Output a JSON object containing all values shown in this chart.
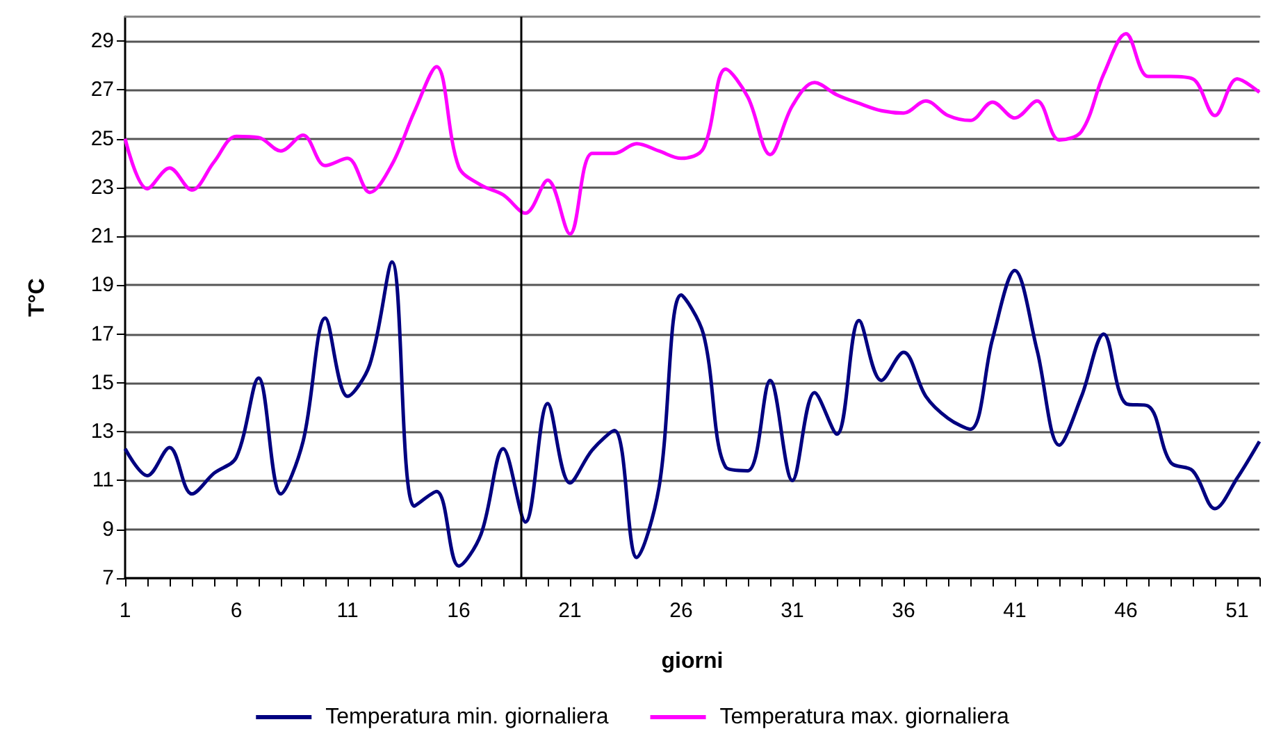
{
  "chart_data": {
    "type": "line",
    "xlabel": "giorni",
    "ylabel": "T°C",
    "x": [
      1,
      2,
      3,
      4,
      5,
      6,
      7,
      8,
      9,
      10,
      11,
      12,
      13,
      14,
      15,
      16,
      17,
      18,
      19,
      20,
      21,
      22,
      23,
      24,
      25,
      26,
      27,
      28,
      29,
      30,
      31,
      32,
      33,
      34,
      35,
      36,
      37,
      38,
      39,
      40,
      41,
      42,
      43,
      44,
      45,
      46,
      47,
      48,
      49,
      50,
      51,
      52
    ],
    "series": [
      {
        "name": "Temperatura min. giornaliera",
        "color": "#000080",
        "values": [
          12.3,
          11.2,
          12.35,
          10.45,
          11.3,
          11.95,
          15.2,
          10.45,
          12.6,
          17.65,
          14.45,
          15.75,
          19.95,
          9.95,
          10.55,
          7.5,
          8.8,
          12.3,
          9.3,
          14.15,
          10.9,
          12.25,
          13.05,
          7.85,
          10.7,
          18.6,
          17.0,
          11.55,
          11.4,
          15.1,
          11.0,
          14.6,
          12.9,
          17.55,
          15.1,
          16.25,
          14.45,
          13.55,
          13.1,
          16.8,
          19.6,
          16.35,
          12.45,
          14.45,
          17.0,
          14.15,
          14.05,
          11.75,
          11.4,
          9.85,
          11.1,
          12.6
        ]
      },
      {
        "name": "Temperatura max. giornaliera",
        "color": "#ff00ff",
        "values": [
          25.0,
          22.95,
          23.8,
          22.9,
          24.05,
          25.1,
          25.05,
          24.5,
          25.15,
          23.9,
          24.2,
          22.8,
          23.95,
          26.1,
          27.95,
          23.85,
          23.1,
          22.7,
          21.95,
          23.3,
          21.1,
          24.4,
          24.4,
          24.8,
          24.5,
          24.2,
          24.6,
          27.85,
          26.7,
          24.35,
          26.35,
          27.3,
          26.8,
          26.45,
          26.15,
          26.05,
          26.55,
          25.95,
          25.75,
          26.5,
          25.85,
          26.55,
          24.95,
          25.3,
          27.65,
          29.3,
          27.55,
          27.55,
          27.45,
          25.95,
          27.45,
          26.9
        ]
      }
    ],
    "xlim": [
      1,
      52
    ],
    "xticks": [
      1,
      {
        "value": 2,
        "label": null
      },
      {
        "value": 3,
        "label": null
      },
      {
        "value": 4,
        "label": null
      },
      {
        "value": 5,
        "label": null
      },
      6,
      {
        "value": 7,
        "label": null
      },
      {
        "value": 8,
        "label": null
      },
      {
        "value": 9,
        "label": null
      },
      {
        "value": 10,
        "label": null
      },
      11,
      {
        "value": 12,
        "label": null
      },
      {
        "value": 13,
        "label": null
      },
      {
        "value": 14,
        "label": null
      },
      {
        "value": 15,
        "label": null
      },
      16,
      {
        "value": 17,
        "label": null
      },
      {
        "value": 18,
        "label": null
      },
      {
        "value": 19,
        "label": null
      },
      {
        "value": 20,
        "label": null
      },
      21,
      {
        "value": 22,
        "label": null
      },
      {
        "value": 23,
        "label": null
      },
      {
        "value": 24,
        "label": null
      },
      {
        "value": 25,
        "label": null
      },
      26,
      {
        "value": 27,
        "label": null
      },
      {
        "value": 28,
        "label": null
      },
      {
        "value": 29,
        "label": null
      },
      {
        "value": 30,
        "label": null
      },
      31,
      {
        "value": 32,
        "label": null
      },
      {
        "value": 33,
        "label": null
      },
      {
        "value": 34,
        "label": null
      },
      {
        "value": 35,
        "label": null
      },
      36,
      {
        "value": 37,
        "label": null
      },
      {
        "value": 38,
        "label": null
      },
      {
        "value": 39,
        "label": null
      },
      {
        "value": 40,
        "label": null
      },
      41,
      {
        "value": 42,
        "label": null
      },
      {
        "value": 43,
        "label": null
      },
      {
        "value": 44,
        "label": null
      },
      {
        "value": 45,
        "label": null
      },
      46,
      {
        "value": 47,
        "label": null
      },
      {
        "value": 48,
        "label": null
      },
      {
        "value": 49,
        "label": null
      },
      {
        "value": 50,
        "label": null
      },
      51,
      {
        "value": 52,
        "label": null
      }
    ],
    "ylim": [
      7,
      30
    ],
    "yticks": [
      7,
      9,
      11,
      13,
      15,
      17,
      19,
      21,
      23,
      25,
      27,
      29
    ],
    "ref_lines": [
      {
        "axis": "x",
        "value": 18.8,
        "color": "#000000"
      }
    ],
    "grid": "y",
    "legend": "bottom",
    "marker": "none",
    "line_style": "solid"
  }
}
